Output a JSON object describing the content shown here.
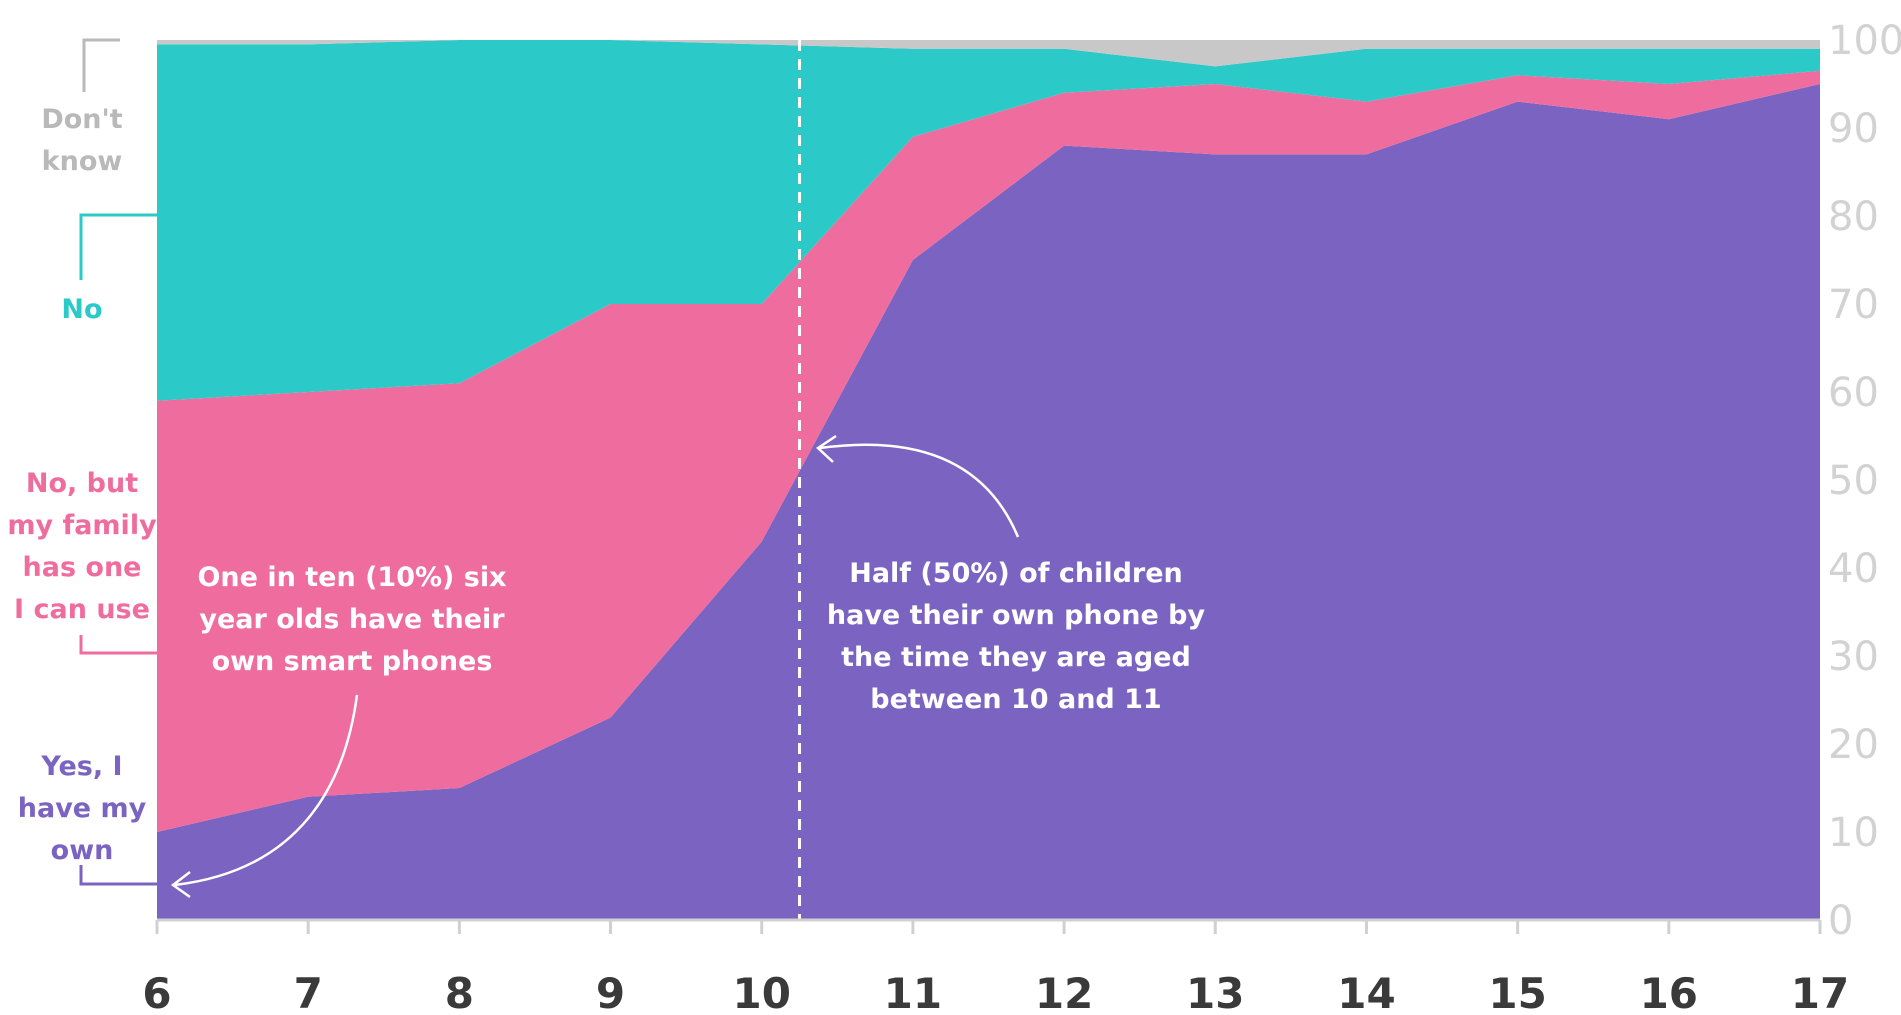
{
  "chart_data": {
    "type": "area",
    "stacked": true,
    "x": [
      6,
      7,
      8,
      9,
      10,
      11,
      12,
      13,
      14,
      15,
      16,
      17
    ],
    "series": [
      {
        "name": "Yes, I have my own",
        "color": "#7b63c1",
        "values": [
          10,
          14,
          15,
          23,
          43,
          75,
          88,
          87,
          87,
          93,
          91,
          95
        ]
      },
      {
        "name": "No, but my family has one I can use",
        "color": "#ef6c9e",
        "values": [
          49,
          46,
          46,
          47,
          27,
          14,
          6,
          8,
          6,
          3,
          4,
          1.5
        ]
      },
      {
        "name": "No",
        "color": "#2bcac8",
        "values": [
          40.5,
          39.5,
          39,
          30,
          29.5,
          10,
          5,
          2,
          6,
          3,
          4,
          2.5
        ]
      },
      {
        "name": "Don't know",
        "color": "#c8c8c8",
        "values": [
          0.5,
          0.5,
          0,
          0,
          0.5,
          1,
          1,
          3,
          1,
          1,
          1,
          1
        ]
      }
    ],
    "ylim": [
      0,
      100
    ],
    "y_ticks": [
      "0",
      "10",
      "20",
      "30",
      "40",
      "50",
      "60",
      "70",
      "80",
      "90",
      "100"
    ],
    "x_ticks": [
      "6",
      "7",
      "8",
      "9",
      "10",
      "11",
      "12",
      "13",
      "14",
      "15",
      "16",
      "17"
    ],
    "y_axis_position": "right",
    "grid": false,
    "reference_line_x": 10.25,
    "legend": [
      {
        "lines": [
          "Don't",
          "know"
        ],
        "color": "#b9b9b9"
      },
      {
        "lines": [
          "No"
        ],
        "color": "#2bcac8"
      },
      {
        "lines": [
          "No, but",
          "my family",
          "has one",
          "I can use"
        ],
        "color": "#ef6c9e"
      },
      {
        "lines": [
          "Yes, I",
          "have my",
          "own"
        ],
        "color": "#7b63c1"
      }
    ],
    "annotations": [
      {
        "lines": [
          "One in ten (10%) six",
          "year olds have their",
          "own smart phones"
        ]
      },
      {
        "lines": [
          "Half (50%) of children",
          "have their own phone by",
          "the time they are aged",
          "between 10 and 11"
        ]
      }
    ]
  }
}
